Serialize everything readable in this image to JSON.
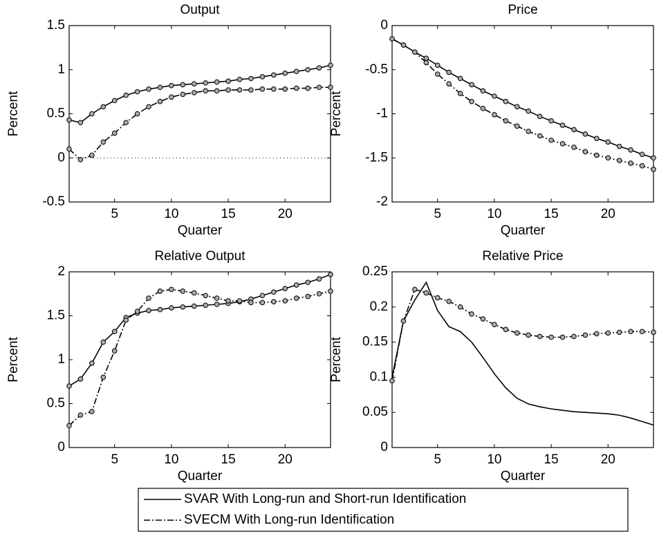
{
  "chart_data": [
    {
      "type": "line",
      "title": "Output",
      "xlabel": "Quarter",
      "ylabel": "Percent",
      "x": [
        1,
        2,
        3,
        4,
        5,
        6,
        7,
        8,
        9,
        10,
        11,
        12,
        13,
        14,
        15,
        16,
        17,
        18,
        19,
        20,
        21,
        22,
        23,
        24
      ],
      "xlim": [
        1,
        24
      ],
      "xticks": [
        5,
        10,
        15,
        20
      ],
      "ylim": [
        -0.5,
        1.5
      ],
      "yticks": [
        -0.5,
        0,
        0.5,
        1,
        1.5
      ],
      "reference_line": 0,
      "series": [
        {
          "color": "#000000",
          "dash": "solid",
          "marker": "o",
          "values": [
            0.43,
            0.4,
            0.5,
            0.58,
            0.65,
            0.71,
            0.75,
            0.78,
            0.8,
            0.82,
            0.83,
            0.84,
            0.85,
            0.86,
            0.87,
            0.89,
            0.9,
            0.92,
            0.94,
            0.96,
            0.98,
            1.0,
            1.02,
            1.05
          ]
        },
        {
          "color": "#000000",
          "dash": "dash-dot",
          "marker": "o",
          "values": [
            0.1,
            -0.02,
            0.03,
            0.18,
            0.28,
            0.4,
            0.5,
            0.58,
            0.64,
            0.69,
            0.72,
            0.74,
            0.76,
            0.76,
            0.77,
            0.77,
            0.77,
            0.78,
            0.78,
            0.78,
            0.79,
            0.79,
            0.8,
            0.8
          ]
        }
      ]
    },
    {
      "type": "line",
      "title": "Price",
      "xlabel": "Quarter",
      "ylabel": "Percent",
      "x": [
        1,
        2,
        3,
        4,
        5,
        6,
        7,
        8,
        9,
        10,
        11,
        12,
        13,
        14,
        15,
        16,
        17,
        18,
        19,
        20,
        21,
        22,
        23,
        24
      ],
      "xlim": [
        1,
        24
      ],
      "xticks": [
        5,
        10,
        15,
        20
      ],
      "ylim": [
        -2,
        0
      ],
      "yticks": [
        -2,
        -1.5,
        -1,
        -0.5,
        0
      ],
      "series": [
        {
          "color": "#000000",
          "dash": "solid",
          "marker": "o",
          "values": [
            -0.15,
            -0.22,
            -0.3,
            -0.37,
            -0.45,
            -0.53,
            -0.6,
            -0.67,
            -0.74,
            -0.8,
            -0.86,
            -0.92,
            -0.97,
            -1.03,
            -1.08,
            -1.13,
            -1.18,
            -1.23,
            -1.28,
            -1.32,
            -1.37,
            -1.41,
            -1.46,
            -1.5
          ]
        },
        {
          "color": "#000000",
          "dash": "dash-dot",
          "marker": "o",
          "values": [
            -0.15,
            -0.22,
            -0.3,
            -0.42,
            -0.55,
            -0.66,
            -0.77,
            -0.86,
            -0.94,
            -1.01,
            -1.08,
            -1.14,
            -1.2,
            -1.25,
            -1.3,
            -1.34,
            -1.38,
            -1.43,
            -1.47,
            -1.5,
            -1.53,
            -1.56,
            -1.59,
            -1.63
          ]
        }
      ]
    },
    {
      "type": "line",
      "title": "Relative Output",
      "xlabel": "Quarter",
      "ylabel": "Percent",
      "x": [
        1,
        2,
        3,
        4,
        5,
        6,
        7,
        8,
        9,
        10,
        11,
        12,
        13,
        14,
        15,
        16,
        17,
        18,
        19,
        20,
        21,
        22,
        23,
        24
      ],
      "xlim": [
        1,
        24
      ],
      "xticks": [
        5,
        10,
        15,
        20
      ],
      "ylim": [
        0,
        2
      ],
      "yticks": [
        0,
        0.5,
        1,
        1.5,
        2
      ],
      "series": [
        {
          "color": "#000000",
          "dash": "solid",
          "marker": "o",
          "values": [
            0.7,
            0.78,
            0.96,
            1.2,
            1.32,
            1.48,
            1.53,
            1.56,
            1.57,
            1.59,
            1.6,
            1.61,
            1.62,
            1.63,
            1.64,
            1.66,
            1.69,
            1.73,
            1.77,
            1.81,
            1.85,
            1.88,
            1.92,
            1.97
          ]
        },
        {
          "color": "#000000",
          "dash": "dash-dot",
          "marker": "o",
          "values": [
            0.25,
            0.37,
            0.41,
            0.8,
            1.1,
            1.45,
            1.55,
            1.7,
            1.78,
            1.8,
            1.78,
            1.76,
            1.73,
            1.7,
            1.67,
            1.67,
            1.65,
            1.65,
            1.66,
            1.67,
            1.7,
            1.72,
            1.75,
            1.78
          ]
        }
      ]
    },
    {
      "type": "line",
      "title": "Relative Price",
      "xlabel": "Quarter",
      "ylabel": "Percent",
      "x": [
        1,
        2,
        3,
        4,
        5,
        6,
        7,
        8,
        9,
        10,
        11,
        12,
        13,
        14,
        15,
        16,
        17,
        18,
        19,
        20,
        21,
        22,
        23,
        24
      ],
      "xlim": [
        1,
        24
      ],
      "xticks": [
        5,
        10,
        15,
        20
      ],
      "ylim": [
        0,
        0.25
      ],
      "yticks": [
        0,
        0.05,
        0.1,
        0.15,
        0.2,
        0.25
      ],
      "series": [
        {
          "color": "#000000",
          "dash": "solid",
          "values": [
            0.1,
            0.18,
            0.21,
            0.235,
            0.195,
            0.172,
            0.165,
            0.15,
            0.128,
            0.105,
            0.085,
            0.07,
            0.062,
            0.058,
            0.055,
            0.053,
            0.051,
            0.05,
            0.049,
            0.048,
            0.046,
            0.042,
            0.037,
            0.032
          ]
        },
        {
          "color": "#000000",
          "dash": "dash-dot",
          "marker": "o",
          "values": [
            0.095,
            0.18,
            0.225,
            0.22,
            0.213,
            0.208,
            0.2,
            0.19,
            0.183,
            0.175,
            0.168,
            0.163,
            0.16,
            0.158,
            0.157,
            0.157,
            0.158,
            0.16,
            0.162,
            0.163,
            0.164,
            0.165,
            0.165,
            0.164
          ]
        }
      ]
    }
  ],
  "legend": [
    "SVAR With Long-run and Short-run Identification",
    "SVECM With Long-run Identification"
  ]
}
